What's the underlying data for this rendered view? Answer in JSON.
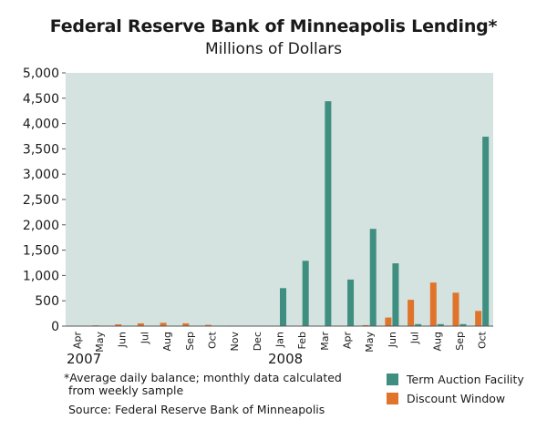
{
  "chart_data": {
    "type": "bar",
    "title": "Federal Reserve Bank of Minneapolis Lending*",
    "subtitle": "Millions of Dollars",
    "categories": [
      "Apr",
      "May",
      "Jun",
      "Jul",
      "Aug",
      "Sep",
      "Oct",
      "Nov",
      "Dec",
      "Jan",
      "Feb",
      "Mar",
      "Apr",
      "May",
      "Jun",
      "Jul",
      "Aug",
      "Sep",
      "Oct"
    ],
    "year_labels": [
      "2007",
      "2008"
    ],
    "series": [
      {
        "name": "Term Auction Facility",
        "color": "#3f8f81",
        "values": [
          0,
          0,
          0,
          0,
          0,
          0,
          0,
          0,
          0,
          750,
          1290,
          4440,
          920,
          1920,
          1240,
          40,
          40,
          40,
          3740
        ]
      },
      {
        "name": "Discount Window",
        "color": "#e0742b",
        "values": [
          5,
          15,
          35,
          55,
          65,
          55,
          25,
          10,
          5,
          0,
          0,
          0,
          0,
          20,
          170,
          520,
          860,
          660,
          300
        ]
      }
    ],
    "ylim": [
      0,
      5000
    ],
    "yticks": [
      0,
      500,
      1000,
      1500,
      2000,
      2500,
      3000,
      3500,
      4000,
      4500,
      5000
    ],
    "ytick_labels": [
      "0",
      "500",
      "1,000",
      "1,500",
      "2,000",
      "2,500",
      "3,000",
      "3,500",
      "4,000",
      "4,500",
      "5,000"
    ],
    "xlabel": "",
    "ylabel": "",
    "grid": false,
    "legend": "bottom-right",
    "plot_background": "#d5e3e0",
    "footnote": [
      "*Average daily balance; monthly data calculated",
      "from weekly sample"
    ],
    "source": "Source: Federal Reserve Bank of Minneapolis"
  }
}
